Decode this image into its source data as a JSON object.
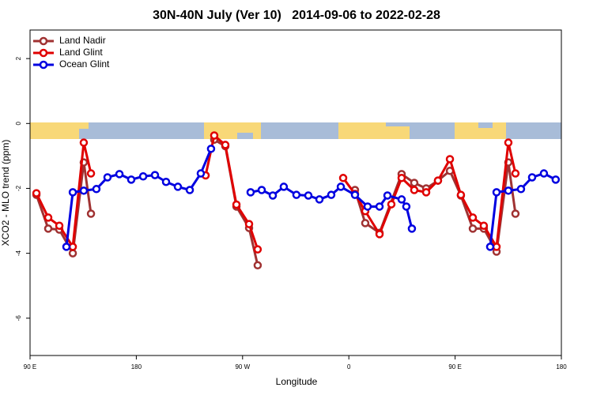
{
  "chart_data": {
    "type": "line",
    "title": "30N-40N July (Ver 10)   2014-09-06 to 2022-02-28",
    "x_label": "Longitude",
    "y_label": "XCO2 - MLO trend (ppm)",
    "xlim": [
      90,
      540
    ],
    "ylim": [
      -7.15,
      2.88
    ],
    "xticks": [
      {
        "value": 90,
        "label": "90 E"
      },
      180,
      {
        "value": 270,
        "label": "90 W"
      },
      {
        "value": 360,
        "label": "0"
      },
      {
        "value": 450,
        "label": "90 E"
      },
      {
        "value": 540,
        "label": "180"
      }
    ],
    "yticks": [
      2,
      0,
      -2,
      -4,
      -6
    ],
    "legend": "top-left",
    "series": [
      {
        "name": "Land Nadir",
        "color": "#a03232",
        "x": [
          95.4,
          105.4,
          114.8,
          126.2,
          135.5,
          141.6,
          null,
          246,
          255.4,
          264.8,
          275.5,
          282.8,
          null,
          365.2,
          373.9,
          386,
          404.7,
          415.4,
          425.5,
          435.5,
          445.6,
          454.9,
          465,
          474.3,
          485.1,
          495.1,
          501.1
        ],
        "values": [
          -2.2,
          -3.24,
          -3.27,
          -4.0,
          -1.2,
          -2.78,
          null,
          -0.5,
          -0.7,
          -2.56,
          -3.22,
          -4.37,
          null,
          -2.05,
          -3.07,
          -3.37,
          -1.56,
          -1.83,
          -2.0,
          -1.76,
          -1.46,
          -2.22,
          -3.24,
          -3.24,
          -3.95,
          -1.2,
          -2.78
        ]
      },
      {
        "name": "Land Glint",
        "color": "#e00000",
        "x": [
          95.4,
          105.4,
          114.8,
          126.2,
          135.5,
          141.6,
          null,
          238.7,
          246,
          255.4,
          264.8,
          275.5,
          282.8,
          null,
          355.2,
          365.2,
          373.9,
          386,
          396,
          404.7,
          415.4,
          425.5,
          435.5,
          445.6,
          454.9,
          465,
          474.3,
          485.1,
          495.1,
          501.1
        ],
        "values": [
          -2.15,
          -2.9,
          -3.15,
          -3.8,
          -0.59,
          -1.54,
          null,
          -1.6,
          -0.37,
          -0.66,
          -2.5,
          -3.1,
          -3.88,
          null,
          -1.68,
          -2.17,
          -2.7,
          -3.41,
          -2.49,
          -1.68,
          -2.05,
          -2.12,
          -1.76,
          -1.1,
          -2.2,
          -2.9,
          -3.15,
          -3.8,
          -0.59,
          -1.54
        ]
      },
      {
        "name": "Ocean Glint",
        "color": "#0000e0",
        "x": [
          120.8,
          126.2,
          135.5,
          146.2,
          155.6,
          165.7,
          175.7,
          185.8,
          195.8,
          205.2,
          215.2,
          225.3,
          234.6,
          243.3,
          null,
          276.8,
          286.2,
          295.6,
          304.9,
          315.6,
          325.7,
          335.1,
          345.1,
          353.2,
          365.2,
          375.9,
          386,
          392.7,
          404.7,
          408.7,
          413.4,
          null,
          479.7,
          485.1,
          495.1,
          505.8,
          515.2,
          525.2,
          535.2
        ],
        "values": [
          -3.8,
          -2.12,
          -2.07,
          -2.02,
          -1.66,
          -1.56,
          -1.73,
          -1.63,
          -1.59,
          -1.8,
          -1.95,
          -2.05,
          -1.54,
          -0.78,
          null,
          -2.12,
          -2.05,
          -2.22,
          -1.95,
          -2.2,
          -2.22,
          -2.34,
          -2.2,
          -1.95,
          -2.2,
          -2.56,
          -2.56,
          -2.22,
          -2.34,
          -2.56,
          -3.24,
          null,
          -3.8,
          -2.12,
          -2.07,
          -2.02,
          -1.66,
          -1.54,
          -1.73
        ]
      }
    ]
  }
}
